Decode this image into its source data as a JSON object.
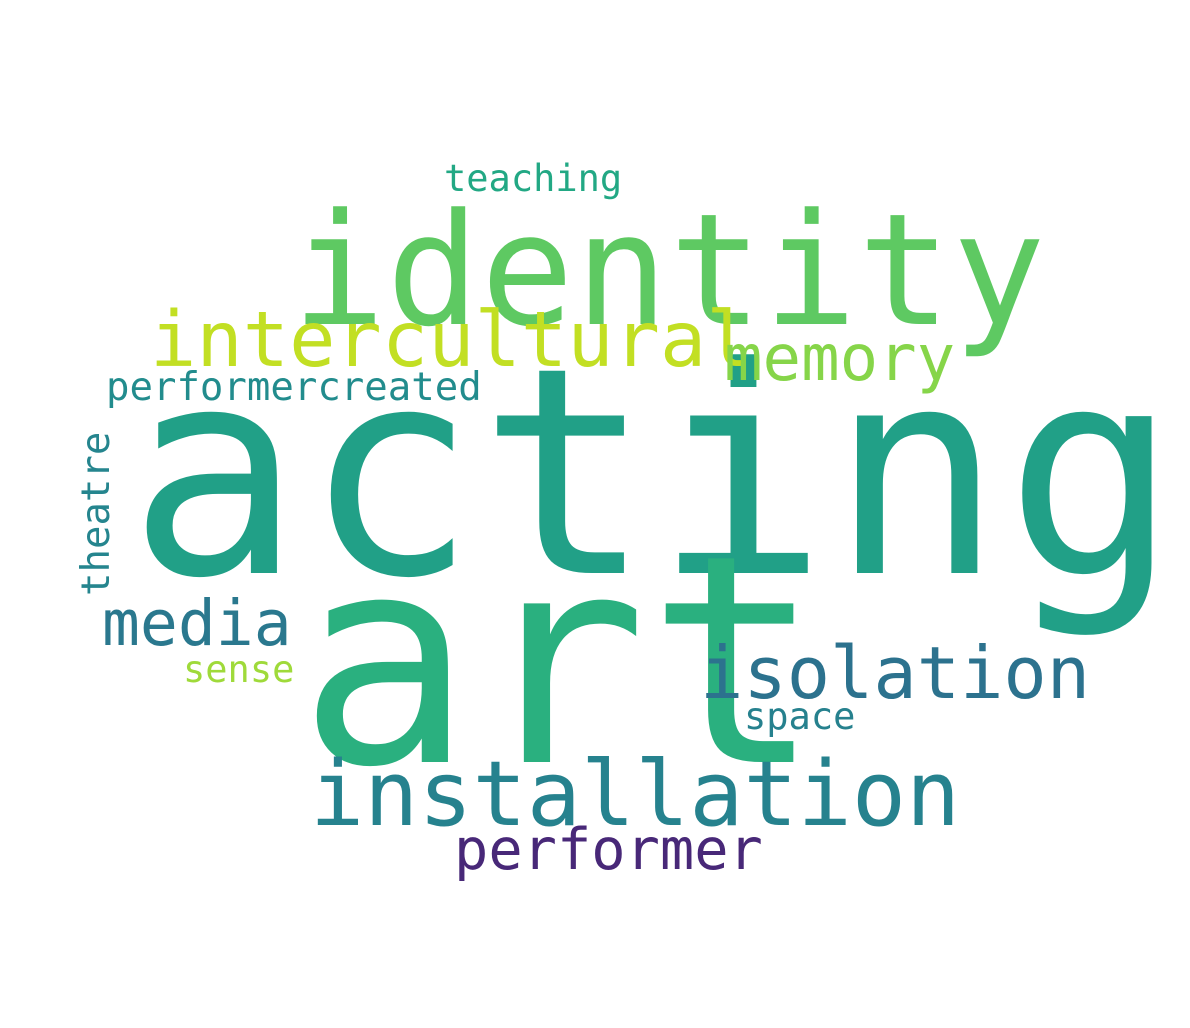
{
  "words": [
    {
      "text": "acting",
      "color": "#21a087"
    },
    {
      "text": "art",
      "color": "#2ab07f"
    },
    {
      "text": "identity",
      "color": "#5ec962"
    },
    {
      "text": "intercultural",
      "color": "#c2df23"
    },
    {
      "text": "memory",
      "color": "#86d549"
    },
    {
      "text": "performercreated",
      "color": "#228c8d"
    },
    {
      "text": "teaching",
      "color": "#22a884"
    },
    {
      "text": "theatre",
      "color": "#25858e"
    },
    {
      "text": "media",
      "color": "#2a788e"
    },
    {
      "text": "sense",
      "color": "#9fda3a"
    },
    {
      "text": "isolation",
      "color": "#2c728e"
    },
    {
      "text": "space",
      "color": "#26818e"
    },
    {
      "text": "installation",
      "color": "#26828e"
    },
    {
      "text": "performer",
      "color": "#482878"
    }
  ]
}
